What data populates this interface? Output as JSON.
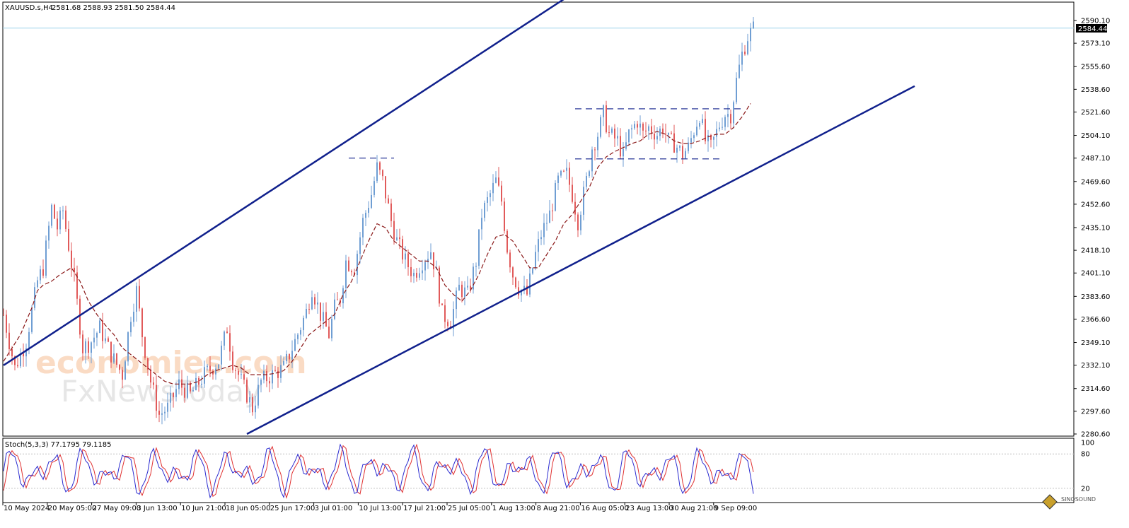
{
  "header": {
    "symbol": "XAUUSD.s,H4",
    "ohlc": "2581.68 2588.93 2581.50 2584.44"
  },
  "stoch": {
    "label": "Stoch(5,3,3) 77.1795 79.1185"
  },
  "watermark": {
    "line1": "economies.com",
    "line2": "FxNewsToday",
    "corner_logo": "SINOSOUND"
  },
  "colors": {
    "background": "#ffffff",
    "bull_candle": "#6f9ed3",
    "bear_candle": "#e15a5a",
    "ma_line": "#8b1a1a",
    "channel": "#10208c",
    "bid_line": "#9fd4ea",
    "stoch_main": "#2a2ad0",
    "stoch_signal": "#e03030"
  },
  "chart_data": {
    "type": "candlestick",
    "symbol": "XAUUSD.s",
    "timeframe": "H4",
    "last_price": "2584.44",
    "y_ticks": [
      "2590.10",
      "2573.10",
      "2555.60",
      "2538.60",
      "2521.60",
      "2504.10",
      "2487.10",
      "2469.60",
      "2452.60",
      "2435.10",
      "2418.10",
      "2401.10",
      "2383.60",
      "2366.60",
      "2349.10",
      "2332.10",
      "2314.60",
      "2297.60",
      "2280.60"
    ],
    "ylim": [
      2280.6,
      2590.1
    ],
    "x_ticks": [
      "10 May 2024",
      "20 May 05:00",
      "27 May 09:00",
      "3 Jun 13:00",
      "10 Jun 21:00",
      "18 Jun 05:00",
      "25 Jun 17:00",
      "3 Jul 01:00",
      "10 Jul 13:00",
      "17 Jul 21:00",
      "25 Jul 05:00",
      "1 Aug 13:00",
      "8 Aug 21:00",
      "16 Aug 05:00",
      "23 Aug 13:00",
      "30 Aug 21:00",
      "9 Sep 09:00"
    ],
    "price_path": [
      [
        0,
        2370
      ],
      [
        4,
        2330
      ],
      [
        8,
        2350
      ],
      [
        12,
        2395
      ],
      [
        14,
        2405
      ],
      [
        17,
        2450
      ],
      [
        19,
        2435
      ],
      [
        21,
        2448
      ],
      [
        25,
        2395
      ],
      [
        28,
        2345
      ],
      [
        31,
        2350
      ],
      [
        34,
        2360
      ],
      [
        38,
        2340
      ],
      [
        42,
        2325
      ],
      [
        45,
        2370
      ],
      [
        47,
        2388
      ],
      [
        49,
        2355
      ],
      [
        52,
        2320
      ],
      [
        55,
        2295
      ],
      [
        58,
        2300
      ],
      [
        62,
        2318
      ],
      [
        66,
        2310
      ],
      [
        71,
        2325
      ],
      [
        76,
        2335
      ],
      [
        79,
        2360
      ],
      [
        81,
        2335
      ],
      [
        84,
        2320
      ],
      [
        88,
        2300
      ],
      [
        91,
        2320
      ],
      [
        95,
        2325
      ],
      [
        99,
        2330
      ],
      [
        103,
        2350
      ],
      [
        107,
        2372
      ],
      [
        109,
        2390
      ],
      [
        112,
        2370
      ],
      [
        115,
        2355
      ],
      [
        117,
        2375
      ],
      [
        119,
        2382
      ],
      [
        121,
        2410
      ],
      [
        124,
        2405
      ],
      [
        127,
        2440
      ],
      [
        130,
        2460
      ],
      [
        132,
        2480
      ],
      [
        134,
        2470
      ],
      [
        137,
        2440
      ],
      [
        139,
        2425
      ],
      [
        142,
        2410
      ],
      [
        145,
        2400
      ],
      [
        148,
        2410
      ],
      [
        151,
        2418
      ],
      [
        153,
        2400
      ],
      [
        155,
        2370
      ],
      [
        158,
        2365
      ],
      [
        161,
        2390
      ],
      [
        164,
        2385
      ],
      [
        167,
        2410
      ],
      [
        169,
        2445
      ],
      [
        172,
        2460
      ],
      [
        174,
        2470
      ],
      [
        176,
        2455
      ],
      [
        178,
        2420
      ],
      [
        180,
        2400
      ],
      [
        182,
        2390
      ],
      [
        185,
        2385
      ],
      [
        188,
        2415
      ],
      [
        190,
        2430
      ],
      [
        193,
        2445
      ],
      [
        196,
        2470
      ],
      [
        199,
        2475
      ],
      [
        201,
        2460
      ],
      [
        203,
        2440
      ],
      [
        206,
        2470
      ],
      [
        208,
        2495
      ],
      [
        210,
        2505
      ],
      [
        212,
        2520
      ],
      [
        214,
        2505
      ],
      [
        217,
        2500
      ],
      [
        219,
        2488
      ],
      [
        221,
        2505
      ],
      [
        224,
        2515
      ],
      [
        226,
        2505
      ],
      [
        228,
        2510
      ],
      [
        231,
        2505
      ],
      [
        233,
        2510
      ],
      [
        235,
        2500
      ],
      [
        237,
        2498
      ],
      [
        240,
        2490
      ],
      [
        242,
        2495
      ],
      [
        244,
        2508
      ],
      [
        246,
        2520
      ],
      [
        248,
        2500
      ],
      [
        250,
        2495
      ],
      [
        253,
        2512
      ],
      [
        255,
        2520
      ],
      [
        257,
        2520
      ],
      [
        259,
        2545
      ],
      [
        261,
        2565
      ],
      [
        263,
        2578
      ],
      [
        265,
        2584
      ]
    ],
    "ma_path": [
      [
        0,
        2335
      ],
      [
        6,
        2355
      ],
      [
        10,
        2375
      ],
      [
        12,
        2388
      ],
      [
        14,
        2392
      ],
      [
        17,
        2395
      ],
      [
        20,
        2400
      ],
      [
        24,
        2405
      ],
      [
        27,
        2395
      ],
      [
        30,
        2380
      ],
      [
        33,
        2370
      ],
      [
        36,
        2362
      ],
      [
        39,
        2355
      ],
      [
        42,
        2345
      ],
      [
        45,
        2340
      ],
      [
        48,
        2335
      ],
      [
        51,
        2330
      ],
      [
        54,
        2325
      ],
      [
        57,
        2320
      ],
      [
        60,
        2318
      ],
      [
        63,
        2318
      ],
      [
        66,
        2318
      ],
      [
        69,
        2320
      ],
      [
        72,
        2325
      ],
      [
        75,
        2328
      ],
      [
        78,
        2330
      ],
      [
        81,
        2332
      ],
      [
        84,
        2330
      ],
      [
        87,
        2325
      ],
      [
        90,
        2325
      ],
      [
        93,
        2325
      ],
      [
        96,
        2326
      ],
      [
        99,
        2328
      ],
      [
        102,
        2335
      ],
      [
        105,
        2345
      ],
      [
        108,
        2355
      ],
      [
        111,
        2360
      ],
      [
        114,
        2365
      ],
      [
        117,
        2370
      ],
      [
        120,
        2385
      ],
      [
        123,
        2395
      ],
      [
        126,
        2410
      ],
      [
        129,
        2425
      ],
      [
        132,
        2438
      ],
      [
        135,
        2435
      ],
      [
        138,
        2425
      ],
      [
        141,
        2420
      ],
      [
        144,
        2415
      ],
      [
        147,
        2410
      ],
      [
        150,
        2410
      ],
      [
        153,
        2405
      ],
      [
        156,
        2392
      ],
      [
        159,
        2385
      ],
      [
        162,
        2380
      ],
      [
        165,
        2388
      ],
      [
        168,
        2400
      ],
      [
        171,
        2415
      ],
      [
        174,
        2428
      ],
      [
        177,
        2430
      ],
      [
        180,
        2425
      ],
      [
        183,
        2415
      ],
      [
        186,
        2405
      ],
      [
        189,
        2405
      ],
      [
        192,
        2415
      ],
      [
        195,
        2425
      ],
      [
        198,
        2438
      ],
      [
        201,
        2445
      ],
      [
        204,
        2455
      ],
      [
        207,
        2465
      ],
      [
        210,
        2480
      ],
      [
        213,
        2488
      ],
      [
        216,
        2492
      ],
      [
        219,
        2495
      ],
      [
        222,
        2498
      ],
      [
        225,
        2500
      ],
      [
        228,
        2505
      ],
      [
        231,
        2507
      ],
      [
        234,
        2505
      ],
      [
        237,
        2500
      ],
      [
        240,
        2498
      ],
      [
        243,
        2498
      ],
      [
        246,
        2500
      ],
      [
        249,
        2503
      ],
      [
        252,
        2505
      ],
      [
        255,
        2505
      ],
      [
        258,
        2510
      ],
      [
        261,
        2518
      ],
      [
        264,
        2528
      ]
    ],
    "channel_upper": [
      [
        0,
        2332
      ],
      [
        250,
        2678
      ]
    ],
    "channel_lower": [
      [
        86,
        2280.6
      ],
      [
        322,
        2541
      ]
    ],
    "resistance_levels": [
      {
        "from": 122,
        "to": 138,
        "price": 2487.1
      },
      {
        "from": 202,
        "to": 262,
        "price": 2524
      },
      {
        "from": 202,
        "to": 254,
        "price": 2486.5
      }
    ],
    "stochastic": {
      "label": "Stoch(5,3,3) 77.1795 79.1185",
      "params": [
        5,
        3,
        3
      ],
      "main": 77.1795,
      "signal": 79.1185,
      "levels": [
        80,
        20
      ],
      "y_ticks": [
        "100",
        "80",
        "20"
      ],
      "ylim": [
        0,
        100
      ]
    }
  }
}
